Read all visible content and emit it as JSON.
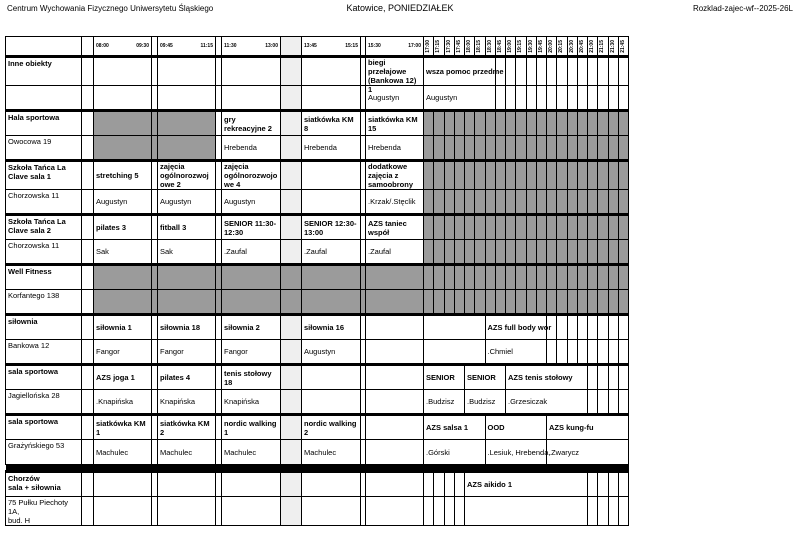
{
  "header": {
    "left": "Centrum Wychowania Fizycznego Uniwersytetu Śląskiego",
    "center": "Katowice, PONIEDZIAŁEK",
    "right": "Rozklad-zajec-wf--2025-26L"
  },
  "colors": {
    "blocked": "#9b9b9b",
    "break": "#efefef",
    "border": "#000000"
  },
  "time_slots": [
    [
      "08:00",
      "09:30"
    ],
    [
      "09:45",
      "11:15"
    ],
    [
      "11:30",
      "13:00"
    ],
    [
      "13:45",
      "15:15"
    ],
    [
      "15:30",
      "17:00"
    ]
  ],
  "quarter_slots": [
    "17:00",
    "17:15",
    "17:30",
    "17:45",
    "18:00",
    "18:15",
    "18:30",
    "18:45",
    "19:00",
    "19:15",
    "19:30",
    "19:45",
    "20:00",
    "20:15",
    "20:30",
    "20:45",
    "21:00",
    "21:15",
    "21:30",
    "21:45"
  ],
  "groups": [
    {
      "name": "Inne obiekty",
      "address": "",
      "slots": [
        {
          "a": "",
          "t": ""
        },
        {
          "a": "",
          "t": ""
        },
        {
          "a": "",
          "t": ""
        },
        {
          "a": "",
          "t": ""
        },
        {
          "a": "biegi przełajowe (Bankowa 12) 1",
          "t": "Augustyn"
        }
      ],
      "evening": [
        {
          "a": "wsza pomoc przedme",
          "t": "Augustyn"
        }
      ]
    },
    {
      "name": "Hala sportowa",
      "address": "Owocowa 19",
      "slots": [
        {
          "blocked": true
        },
        {
          "blocked": true
        },
        {
          "a": "gry rekreacyjne 2",
          "t": "Hrebenda"
        },
        {
          "a": "siatkówka KM 8",
          "t": "Hrebenda"
        },
        {
          "a": "siatkówka KM 15",
          "t": "Hrebenda"
        }
      ],
      "evening_blocked": true
    },
    {
      "name": "Szkoła Tańca La Clave sala 1",
      "address": "Chorzowska 11",
      "slots": [
        {
          "a": "stretching 5",
          "t": "Augustyn"
        },
        {
          "a": "zajęcia ogólnorozwojowe 2",
          "t": "Augustyn"
        },
        {
          "a": "zajęcia ogólnorozwojowe 4",
          "t": "Augustyn"
        },
        {
          "a": "",
          "t": ""
        },
        {
          "a": "dodatkowe zajęcia z samoobrony",
          "t": ".Krzak/.Stęclik"
        }
      ],
      "evening_blocked": true
    },
    {
      "name": "Szkoła Tańca La Clave sala 2",
      "address": "Chorzowska 11",
      "slots": [
        {
          "a": "pilates 3",
          "t": "Sak"
        },
        {
          "a": "fitball 3",
          "t": "Sak"
        },
        {
          "a": "SENIOR 11:30-12:30",
          "t": ".Zaufal"
        },
        {
          "a": "SENIOR 12:30-13:00",
          "t": ".Zaufal"
        },
        {
          "a": "AZS taniec współ",
          "t": ".Zaufal"
        }
      ],
      "evening_blocked": true
    },
    {
      "name": "Well Fitness",
      "address": "Korfantego 138",
      "slots": [
        {
          "blocked": true
        },
        {
          "blocked": true
        },
        {
          "blocked": true
        },
        {
          "blocked": true
        },
        {
          "blocked": true
        }
      ],
      "evening_blocked": true
    },
    {
      "name": "siłownia",
      "address": "Bankowa 12",
      "slots": [
        {
          "a": "siłownia 1",
          "t": "Fangor"
        },
        {
          "a": "siłownia 18",
          "t": "Fangor"
        },
        {
          "a": "siłownia 2",
          "t": "Fangor"
        },
        {
          "a": "siłownia 16",
          "t": "Augustyn"
        },
        {
          "a": "",
          "t": ""
        }
      ],
      "evening": [
        {
          "a": "",
          "t": ""
        },
        {
          "a": "AZS full body wor",
          "t": ".Chmiel"
        }
      ]
    },
    {
      "name": "sala sportowa",
      "address": "Jagiellońska 28",
      "slots": [
        {
          "a": "AZS joga 1",
          "t": ".Knapińska"
        },
        {
          "a": "pilates 4",
          "t": "Knapińska"
        },
        {
          "a": "tenis stołowy 18",
          "t": "Knapińska"
        },
        {
          "a": "",
          "t": ""
        },
        {
          "a": "",
          "t": ""
        }
      ],
      "evening": [
        {
          "a": "SENIOR",
          "t": ".Budzisz"
        },
        {
          "a": "SENIOR",
          "t": ".Budzisz"
        },
        {
          "a": "AZS tenis stołowy",
          "t": ".Grzesiczak"
        }
      ]
    },
    {
      "name": "sala sportowa",
      "address": "Grażyńskiego 53",
      "slots": [
        {
          "a": "siatkówka KM 1",
          "t": "Machulec"
        },
        {
          "a": "siatkówka KM 2",
          "t": "Machulec"
        },
        {
          "a": "nordic walking 1",
          "t": "Machulec"
        },
        {
          "a": "nordic walking 2",
          "t": "Machulec"
        },
        {
          "a": "",
          "t": ""
        }
      ],
      "evening": [
        {
          "a": "AZS salsa 1",
          "t": ".Górski"
        },
        {
          "a": "OOD",
          "t": ".Lesiuk, Hrebenda, "
        },
        {
          "a": "AZS kung-fu",
          "t": ".Zwarycz"
        }
      ]
    },
    {
      "name": "Chorzów\nsala + siłownia",
      "address": "75 Pułku Piechoty 1A,\nbud. H",
      "slots": [
        {
          "a": "",
          "t": ""
        },
        {
          "a": "",
          "t": ""
        },
        {
          "a": "",
          "t": ""
        },
        {
          "a": "",
          "t": ""
        },
        {
          "a": "",
          "t": ""
        }
      ],
      "evening": [
        {
          "a": "AZS aikido 1",
          "t": ""
        }
      ]
    }
  ]
}
